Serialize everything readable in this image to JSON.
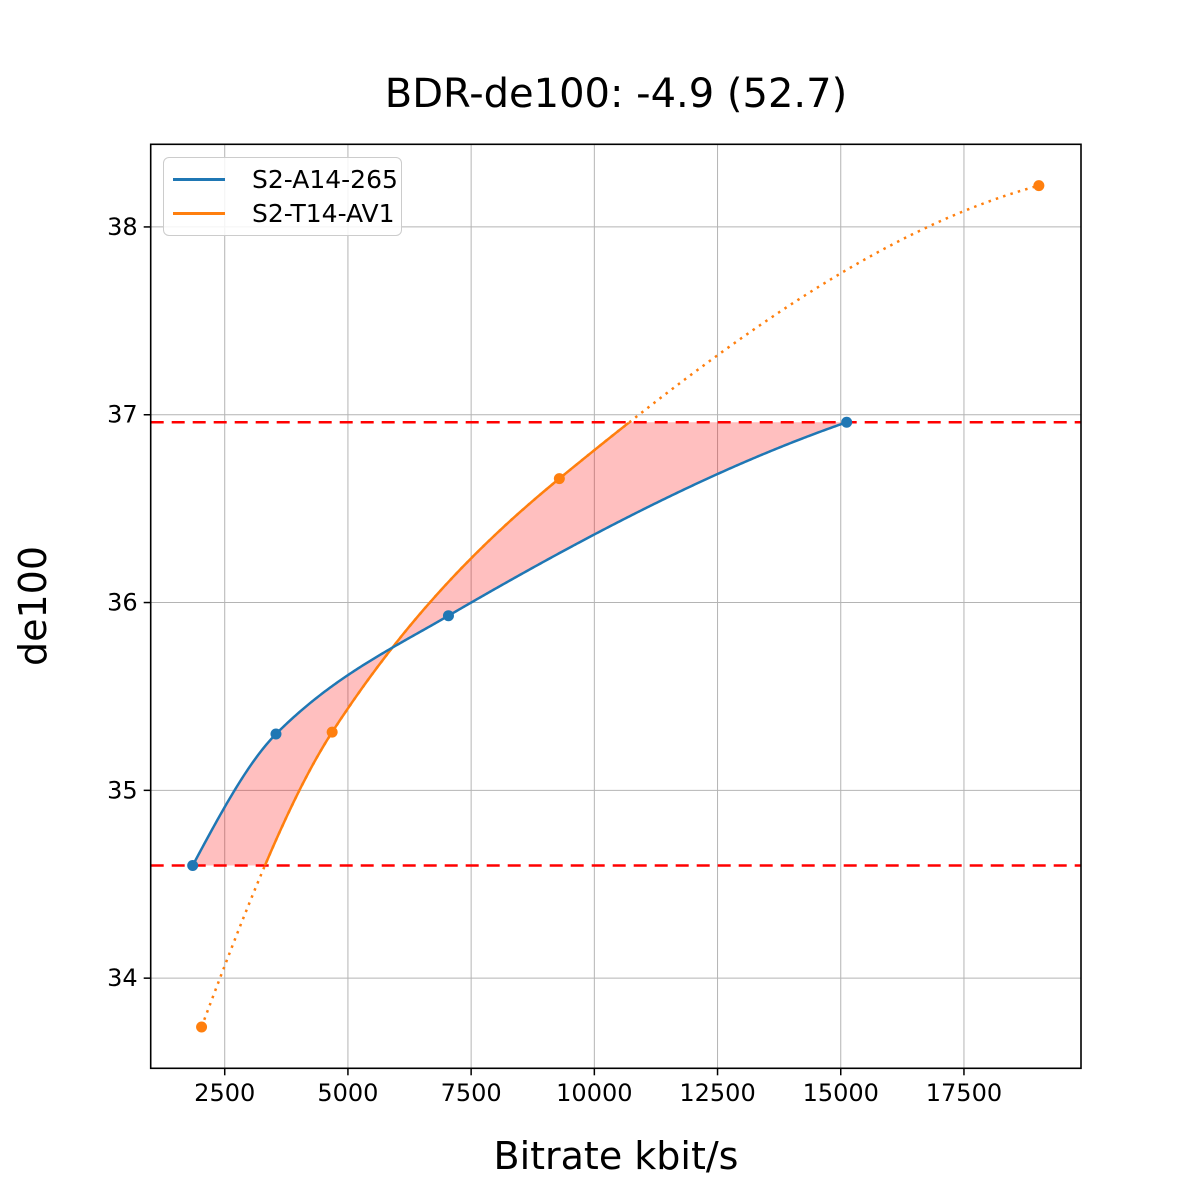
{
  "chart_data": {
    "type": "line",
    "title": "BDR-de100: -4.9 (52.7)",
    "xlabel": "Bitrate kbit/s",
    "ylabel": "de100",
    "xlim": [
      998,
      19875
    ],
    "ylim": [
      33.52,
      38.44
    ],
    "xticks": [
      2500,
      5000,
      7500,
      10000,
      12500,
      15000,
      17500
    ],
    "yticks": [
      34,
      35,
      36,
      37,
      38
    ],
    "grid": true,
    "grid_color": "#b4b4b4",
    "legend_position": "upper left",
    "series": [
      {
        "name": "S2-A14-265",
        "color": "#1f77b4",
        "line_style": "solid",
        "marker": "circle",
        "points": [
          [
            1850,
            34.6
          ],
          [
            3540,
            35.3
          ],
          [
            7040,
            35.93
          ],
          [
            15120,
            36.96
          ]
        ]
      },
      {
        "name": "S2-T14-AV1",
        "color": "#ff7f0e",
        "line_style": "solid inside overlap, dotted outside",
        "marker": "circle",
        "points": [
          [
            2030,
            33.74
          ],
          [
            4680,
            35.31
          ],
          [
            9290,
            36.66
          ],
          [
            19020,
            38.22
          ]
        ]
      }
    ],
    "overlap_region": {
      "lower_quality": 34.6,
      "upper_quality": 36.96,
      "boundary_color": "#ff0000",
      "boundary_style": "dashed",
      "fill_color": "#ff0000",
      "fill_opacity": 0.25
    }
  }
}
